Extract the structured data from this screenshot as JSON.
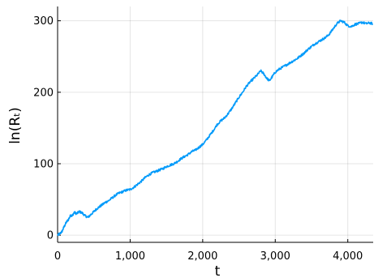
{
  "chart_data": {
    "type": "line",
    "xlabel": "t",
    "ylabel": "ln(Rₜ)",
    "xlim": [
      0,
      4350
    ],
    "ylim": [
      -10,
      320
    ],
    "xticks": [
      0,
      1000,
      2000,
      3000,
      4000
    ],
    "xtick_labels": [
      "0",
      "1,000",
      "2,000",
      "3,000",
      "4,000"
    ],
    "yticks": [
      0,
      100,
      200,
      300
    ],
    "ytick_labels": [
      "0",
      "100",
      "200",
      "300"
    ],
    "grid": true,
    "legend": false,
    "series_color": "#009AFA",
    "series": [
      {
        "x": [
          0,
          30,
          60,
          90,
          120,
          150,
          180,
          200,
          230,
          260,
          300,
          340,
          380,
          420,
          460,
          500,
          540,
          580,
          620,
          660,
          700,
          750,
          800,
          850,
          900,
          950,
          1000,
          1050,
          1100,
          1150,
          1200,
          1250,
          1300,
          1350,
          1400,
          1450,
          1500,
          1550,
          1600,
          1650,
          1700,
          1750,
          1800,
          1850,
          1900,
          1950,
          2000,
          2050,
          2100,
          2150,
          2200,
          2250,
          2300,
          2350,
          2400,
          2450,
          2500,
          2550,
          2600,
          2650,
          2700,
          2750,
          2800,
          2840,
          2880,
          2920,
          2960,
          3000,
          3050,
          3100,
          3150,
          3200,
          3250,
          3300,
          3350,
          3400,
          3450,
          3500,
          3550,
          3600,
          3650,
          3700,
          3750,
          3800,
          3850,
          3900,
          3950,
          4000,
          4050,
          4100,
          4150,
          4200,
          4250,
          4300,
          4340
        ],
        "y": [
          0,
          2,
          5,
          12,
          18,
          22,
          28,
          27,
          32,
          30,
          33,
          31,
          27,
          25,
          29,
          33,
          37,
          40,
          43,
          46,
          48,
          52,
          56,
          59,
          61,
          63,
          64,
          67,
          71,
          75,
          80,
          84,
          87,
          89,
          91,
          93,
          96,
          98,
          100,
          103,
          107,
          110,
          113,
          117,
          119,
          123,
          127,
          133,
          140,
          147,
          155,
          160,
          164,
          170,
          177,
          185,
          193,
          200,
          208,
          214,
          219,
          224,
          230,
          226,
          220,
          216,
          222,
          228,
          232,
          235,
          238,
          241,
          244,
          247,
          251,
          255,
          260,
          264,
          268,
          271,
          274,
          277,
          282,
          289,
          296,
          300,
          298,
          293,
          292,
          295,
          296,
          298,
          296,
          297,
          296
        ]
      }
    ]
  }
}
